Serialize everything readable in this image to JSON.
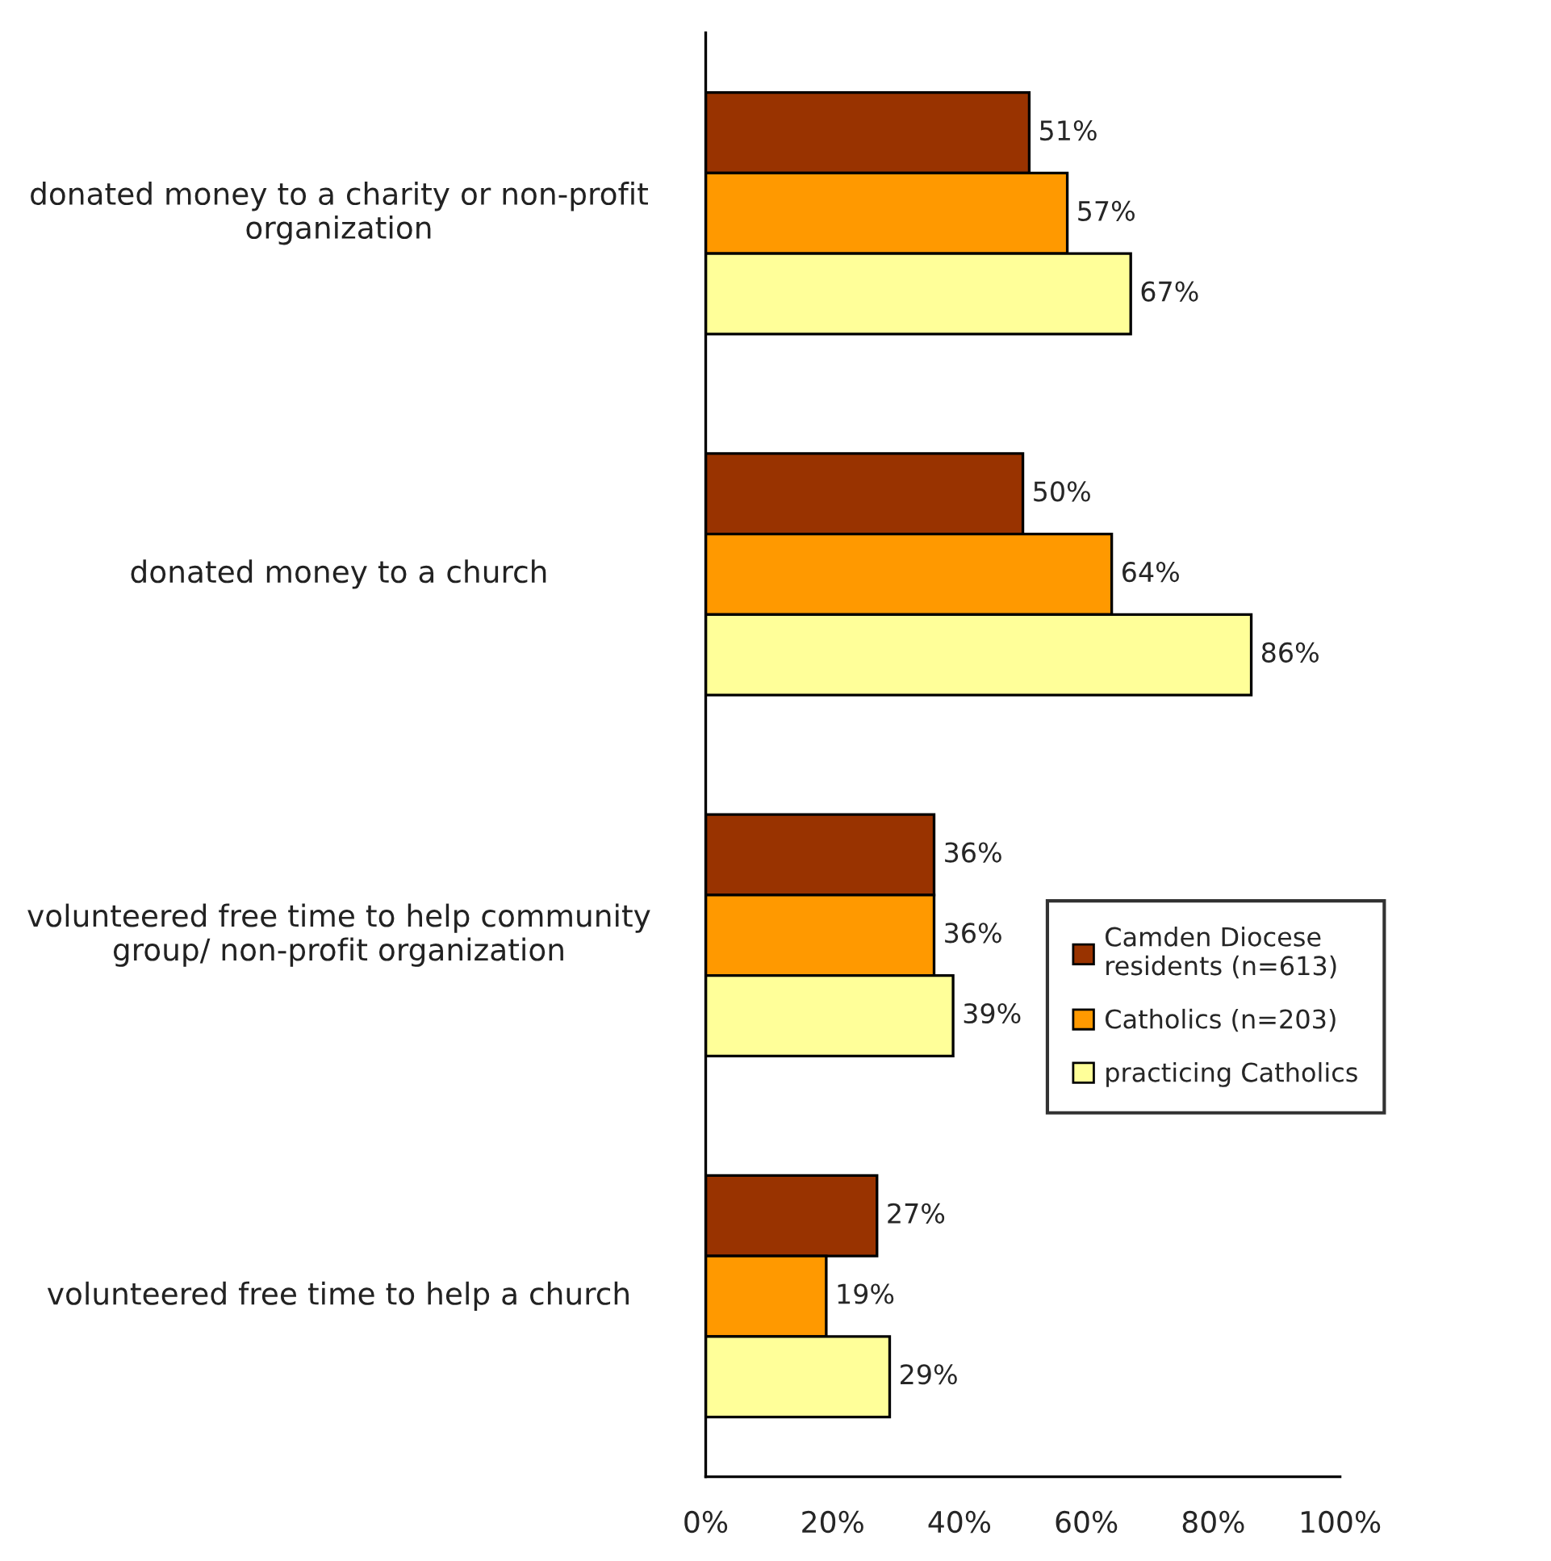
{
  "chart_data": {
    "type": "bar",
    "orientation": "horizontal",
    "categories": [
      "donated money to a charity or non-profit organization",
      "donated money to a church",
      "volunteered free time to help community group/ non-profit organization",
      "volunteered free time to help a church"
    ],
    "series": [
      {
        "name": "Camden Diocese residents (n=613)",
        "color": "#993300",
        "values": [
          51,
          50,
          36,
          27
        ],
        "value_labels": [
          "51%",
          "50%",
          "36%",
          "27%"
        ]
      },
      {
        "name": "Catholics (n=203)",
        "color": "#ff9900",
        "values": [
          57,
          64,
          36,
          19
        ],
        "value_labels": [
          "57%",
          "64%",
          "36%",
          "19%"
        ]
      },
      {
        "name": "practicing Catholics",
        "color": "#ffff99",
        "values": [
          67,
          86,
          39,
          29
        ],
        "value_labels": [
          "67%",
          "86%",
          "39%",
          "29%"
        ]
      }
    ],
    "xlim": [
      0,
      100
    ],
    "xticks": [
      {
        "value": 0,
        "label": "0%"
      },
      {
        "value": 20,
        "label": "20%"
      },
      {
        "value": 40,
        "label": "40%"
      },
      {
        "value": 60,
        "label": "60%"
      },
      {
        "value": 80,
        "label": "80%"
      },
      {
        "value": 100,
        "label": "100%"
      }
    ],
    "grid": false,
    "legend": "right"
  }
}
